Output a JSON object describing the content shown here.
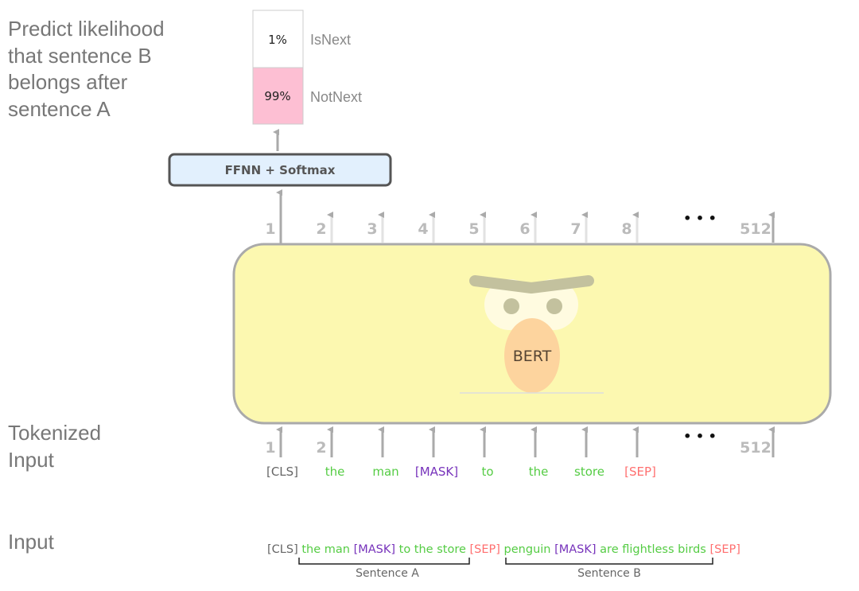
{
  "labels": {
    "predict": [
      "Predict likelihood",
      "that sentence B",
      "belongs after",
      "sentence A"
    ],
    "tokenized": [
      "Tokenized",
      "Input"
    ],
    "input": "Input"
  },
  "output": {
    "isnext": {
      "value": "1%",
      "label": "IsNext"
    },
    "notnext": {
      "value": "99%",
      "label": "NotNext"
    }
  },
  "ffnn": "FFNN + Softmax",
  "model": "BERT",
  "positions": [
    "1",
    "2",
    "3",
    "4",
    "5",
    "6",
    "7",
    "8",
    "512"
  ],
  "ellipsis": "• • •",
  "tokens": [
    {
      "text": "[CLS]",
      "type": "special"
    },
    {
      "text": "the",
      "type": "word"
    },
    {
      "text": "man",
      "type": "word"
    },
    {
      "text": "[MASK]",
      "type": "mask"
    },
    {
      "text": "to",
      "type": "word"
    },
    {
      "text": "the",
      "type": "word"
    },
    {
      "text": "store",
      "type": "word"
    },
    {
      "text": "[SEP]",
      "type": "sep"
    }
  ],
  "sentence": {
    "cls": "[CLS]",
    "a1": "the man",
    "mask1": "[MASK]",
    "a2": "to the store",
    "sep1": "[SEP]",
    "b1": "penguin",
    "mask2": "[MASK]",
    "b2": "are flightless birds",
    "sep2": "[SEP]"
  },
  "brackets": {
    "a": "Sentence A",
    "b": "Sentence B"
  },
  "colors": {
    "special": "#666666",
    "word": "#55cc44",
    "mask": "#7733bb",
    "sep": "#ff6f6f",
    "bert_body": "#fcf8b0",
    "notnext_fill": "#fdbfd3",
    "ffnn_fill": "#e2f0fd"
  }
}
